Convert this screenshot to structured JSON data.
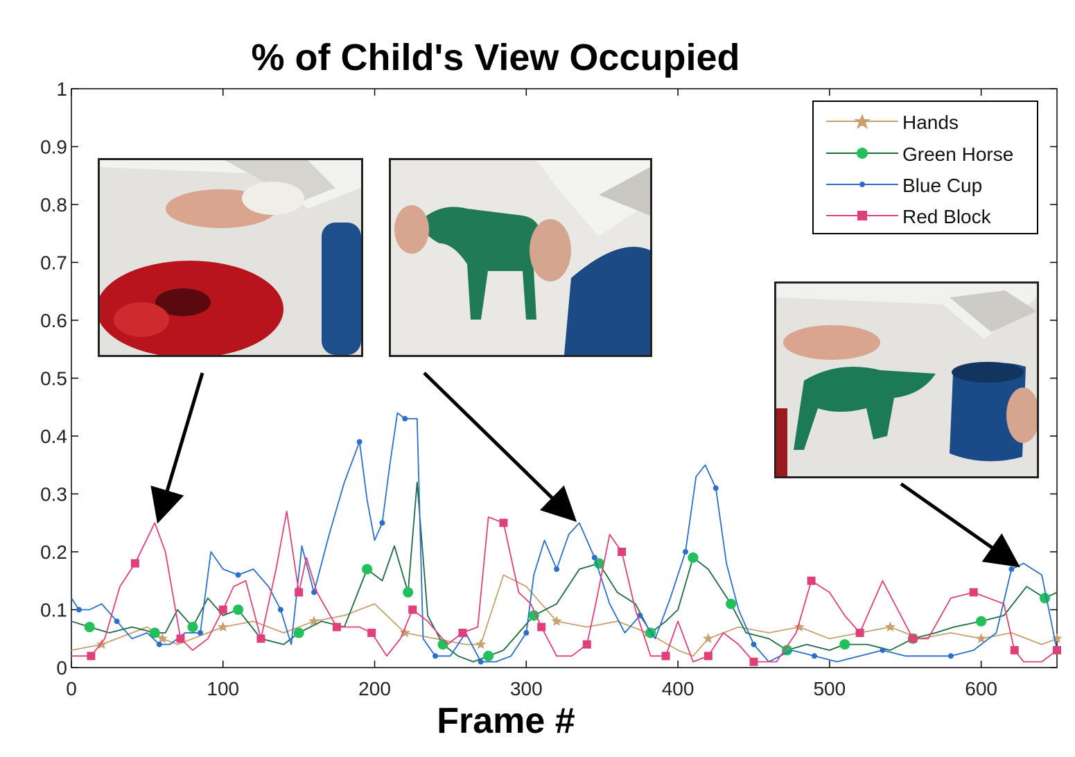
{
  "chart_data": {
    "type": "line",
    "title": "% of Child's View Occupied",
    "xlabel": "Frame #",
    "ylabel": "",
    "xlim": [
      0,
      650
    ],
    "ylim": [
      0,
      1
    ],
    "xticks": [
      "0",
      "100",
      "200",
      "300",
      "400",
      "500",
      "600"
    ],
    "yticks": [
      "0",
      "0.1",
      "0.2",
      "0.3",
      "0.4",
      "0.5",
      "0.6",
      "0.7",
      "0.8",
      "0.9",
      "1"
    ],
    "grid": false,
    "legend_position": "top-right",
    "series": [
      {
        "name": "Hands",
        "color": "#c8a070",
        "marker": "star",
        "x": [
          0,
          20,
          40,
          50,
          60,
          70,
          80,
          100,
          120,
          140,
          160,
          180,
          200,
          220,
          240,
          260,
          270,
          285,
          300,
          320,
          340,
          360,
          380,
          400,
          410,
          420,
          440,
          460,
          480,
          500,
          520,
          540,
          560,
          580,
          600,
          620,
          640,
          650
        ],
        "y": [
          0.03,
          0.04,
          0.06,
          0.07,
          0.05,
          0.04,
          0.05,
          0.07,
          0.08,
          0.06,
          0.08,
          0.09,
          0.11,
          0.06,
          0.05,
          0.04,
          0.04,
          0.16,
          0.14,
          0.08,
          0.07,
          0.08,
          0.06,
          0.03,
          0.02,
          0.05,
          0.07,
          0.06,
          0.07,
          0.05,
          0.06,
          0.07,
          0.05,
          0.06,
          0.05,
          0.06,
          0.04,
          0.05
        ]
      },
      {
        "name": "Green Horse",
        "color": "#1e6b40",
        "marker": "circle",
        "x": [
          0,
          12,
          25,
          40,
          55,
          62,
          70,
          80,
          90,
          100,
          110,
          125,
          140,
          150,
          165,
          180,
          195,
          205,
          213,
          222,
          228,
          235,
          245,
          255,
          265,
          275,
          285,
          295,
          305,
          320,
          335,
          348,
          360,
          372,
          382,
          392,
          400,
          410,
          420,
          425,
          435,
          445,
          460,
          472,
          485,
          500,
          510,
          525,
          540,
          555,
          570,
          582,
          600,
          615,
          630,
          642,
          650
        ],
        "y": [
          0.08,
          0.07,
          0.06,
          0.07,
          0.06,
          0.06,
          0.1,
          0.07,
          0.12,
          0.09,
          0.1,
          0.05,
          0.04,
          0.06,
          0.08,
          0.07,
          0.17,
          0.15,
          0.21,
          0.13,
          0.32,
          0.09,
          0.04,
          0.02,
          0.01,
          0.02,
          0.03,
          0.06,
          0.09,
          0.11,
          0.17,
          0.18,
          0.13,
          0.11,
          0.06,
          0.08,
          0.1,
          0.19,
          0.17,
          0.15,
          0.11,
          0.06,
          0.05,
          0.03,
          0.04,
          0.03,
          0.04,
          0.04,
          0.03,
          0.05,
          0.06,
          0.07,
          0.08,
          0.09,
          0.14,
          0.12,
          0.13
        ]
      },
      {
        "name": "Blue Cup",
        "color": "#2a6fc9",
        "marker": "dot",
        "x": [
          0,
          5,
          12,
          20,
          30,
          40,
          50,
          58,
          65,
          75,
          85,
          92,
          100,
          110,
          120,
          130,
          138,
          145,
          152,
          160,
          170,
          180,
          190,
          195,
          200,
          205,
          210,
          215,
          220,
          228,
          232,
          240,
          250,
          260,
          270,
          280,
          290,
          300,
          305,
          312,
          320,
          328,
          335,
          345,
          355,
          365,
          375,
          385,
          395,
          405,
          412,
          418,
          425,
          432,
          440,
          450,
          460,
          475,
          490,
          505,
          520,
          535,
          550,
          565,
          580,
          595,
          610,
          620,
          628,
          640,
          650
        ],
        "y": [
          0.12,
          0.1,
          0.1,
          0.11,
          0.08,
          0.05,
          0.06,
          0.04,
          0.04,
          0.06,
          0.06,
          0.2,
          0.17,
          0.16,
          0.17,
          0.14,
          0.1,
          0.04,
          0.21,
          0.13,
          0.23,
          0.32,
          0.39,
          0.29,
          0.22,
          0.25,
          0.35,
          0.44,
          0.43,
          0.43,
          0.05,
          0.02,
          0.02,
          0.06,
          0.01,
          0.01,
          0.02,
          0.06,
          0.16,
          0.22,
          0.17,
          0.23,
          0.25,
          0.19,
          0.11,
          0.06,
          0.09,
          0.05,
          0.12,
          0.2,
          0.33,
          0.35,
          0.31,
          0.18,
          0.1,
          0.04,
          0.01,
          0.03,
          0.02,
          0.01,
          0.02,
          0.03,
          0.02,
          0.02,
          0.02,
          0.03,
          0.06,
          0.17,
          0.18,
          0.16,
          0.03
        ]
      },
      {
        "name": "Red Block",
        "color": "#e0407a",
        "marker": "square",
        "x": [
          0,
          13,
          22,
          32,
          42,
          55,
          62,
          72,
          80,
          90,
          100,
          107,
          115,
          125,
          135,
          142,
          150,
          155,
          162,
          175,
          183,
          190,
          198,
          208,
          217,
          225,
          235,
          248,
          258,
          268,
          275,
          285,
          295,
          303,
          310,
          320,
          330,
          340,
          345,
          355,
          363,
          372,
          382,
          392,
          400,
          410,
          420,
          430,
          440,
          450,
          465,
          478,
          488,
          500,
          510,
          520,
          535,
          545,
          555,
          565,
          580,
          595,
          605,
          615,
          622,
          628,
          640,
          650
        ],
        "y": [
          0.02,
          0.02,
          0.05,
          0.14,
          0.18,
          0.25,
          0.2,
          0.05,
          0.03,
          0.05,
          0.1,
          0.14,
          0.15,
          0.05,
          0.17,
          0.27,
          0.13,
          0.19,
          0.13,
          0.07,
          0.07,
          0.07,
          0.06,
          0.02,
          0.05,
          0.1,
          0.08,
          0.04,
          0.06,
          0.07,
          0.26,
          0.25,
          0.13,
          0.11,
          0.07,
          0.02,
          0.02,
          0.04,
          0.1,
          0.23,
          0.2,
          0.1,
          0.02,
          0.02,
          0.08,
          0.01,
          0.02,
          0.06,
          0.04,
          0.01,
          0.01,
          0.06,
          0.15,
          0.13,
          0.09,
          0.06,
          0.15,
          0.1,
          0.05,
          0.05,
          0.12,
          0.13,
          0.12,
          0.11,
          0.03,
          0.01,
          0.01,
          0.03
        ]
      }
    ],
    "annotations": [
      {
        "type": "arrow",
        "from": "top-left photo",
        "to_x": 58,
        "to_y": 0.26
      },
      {
        "type": "arrow",
        "from": "top-middle photo",
        "to_x": 330,
        "to_y": 0.26
      },
      {
        "type": "arrow",
        "from": "right photo",
        "to_x": 622,
        "to_y": 0.18
      }
    ]
  },
  "insets": [
    {
      "subject": "hand-and-red-block-photo"
    },
    {
      "subject": "green-horse-photo"
    },
    {
      "subject": "green-horse-and-blue-cup-photo"
    }
  ]
}
